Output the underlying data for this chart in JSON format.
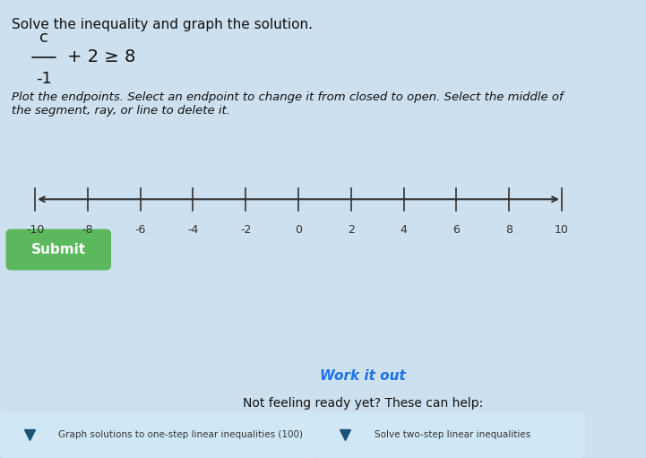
{
  "title": "Solve the inequality and graph the solution.",
  "equation_numerator": "c",
  "equation_denominator": "-1",
  "equation_rest": "+ 2 ≥ 8",
  "instructions": "Plot the endpoints. Select an endpoint to change it from closed to open. Select the middle of\nthe segment, ray, or line to delete it.",
  "number_line_min": -10,
  "number_line_max": 10,
  "number_line_ticks": [
    -10,
    -8,
    -6,
    -4,
    -2,
    0,
    2,
    4,
    6,
    8,
    10
  ],
  "bg_color": "#cde0ef",
  "submit_btn_color": "#5cb85c",
  "submit_btn_text": "Submit",
  "submit_btn_text_color": "#ffffff",
  "work_it_out_text": "Work it out",
  "work_it_out_color": "#1a73e8",
  "not_feeling_text": "Not feeling ready yet? These can help:",
  "bottom_left_btn_text": "Graph solutions to one-step linear inequalities (100)",
  "bottom_right_btn_text": "Solve two-step linear inequalities",
  "bottom_btn_bg": "#d0e8f5",
  "bottom_btn_icon_color": "#1a5276",
  "axis_color": "#333333",
  "tick_color": "#333333",
  "tick_label_color": "#333333"
}
